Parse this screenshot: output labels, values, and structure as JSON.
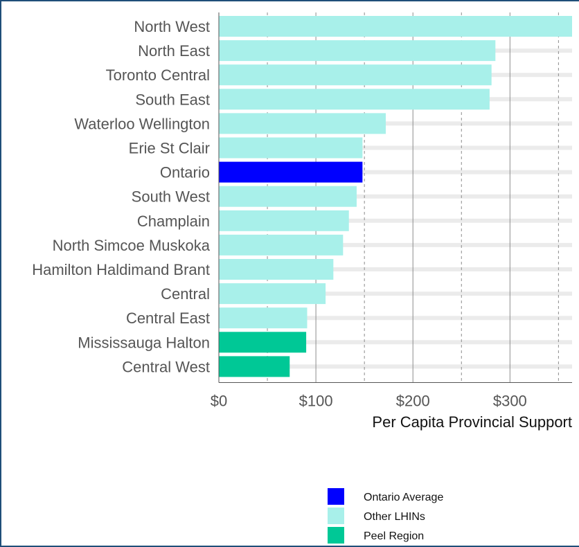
{
  "chart_data": {
    "type": "bar",
    "orientation": "horizontal",
    "categories": [
      "North West",
      "North East",
      "Toronto Central",
      "South East",
      "Waterloo Wellington",
      "Erie St Clair",
      "Ontario",
      "South West",
      "Champlain",
      "North Simcoe Muskoka",
      "Hamilton Haldimand Brant",
      "Central",
      "Central East",
      "Mississauga Halton",
      "Central West"
    ],
    "values": [
      364,
      285,
      281,
      279,
      172,
      148,
      148,
      142,
      134,
      128,
      118,
      110,
      91,
      90,
      73
    ],
    "groups": [
      "Other LHINs",
      "Other LHINs",
      "Other LHINs",
      "Other LHINs",
      "Other LHINs",
      "Other LHINs",
      "Ontario Average",
      "Other LHINs",
      "Other LHINs",
      "Other LHINs",
      "Other LHINs",
      "Other LHINs",
      "Other LHINs",
      "Peel Region",
      "Peel Region"
    ],
    "xlabel": "Per Capita Provincial Support",
    "ylabel": "",
    "xlim": [
      0,
      364
    ],
    "xticks": [
      0,
      100,
      200,
      300
    ],
    "xtick_labels": [
      "$0",
      "$100",
      "$200",
      "$300"
    ],
    "minor_gridlines": [
      50,
      150,
      250,
      350
    ],
    "grid": true,
    "legend": {
      "placement": "bottom-right",
      "entries": [
        {
          "name": "Ontario Average",
          "color": "#0000ff"
        },
        {
          "name": "Other LHINs",
          "color": "#a8f0ea"
        },
        {
          "name": "Peel Region",
          "color": "#00c896"
        }
      ]
    }
  }
}
